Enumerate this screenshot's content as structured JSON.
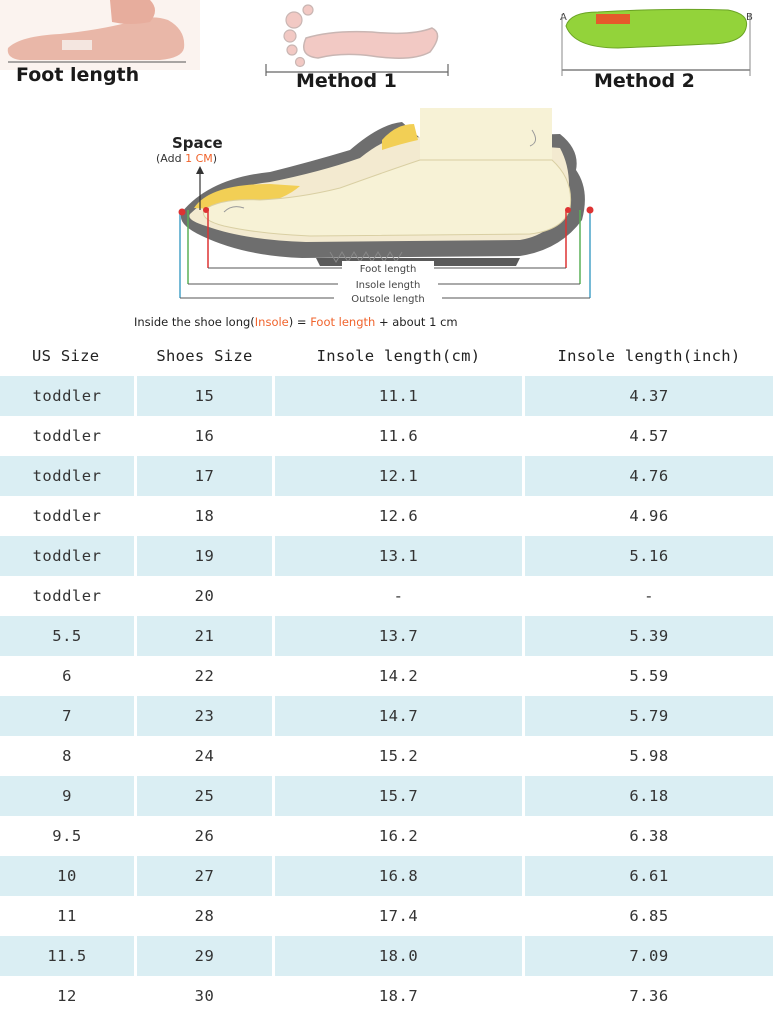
{
  "methods": {
    "foot_length_label": "Foot length",
    "method1_label": "Method 1",
    "method2_label": "Method 2",
    "insole_end_a": "A",
    "insole_end_b": "B"
  },
  "diagram": {
    "space_label": "Space",
    "add_prefix": "(Add ",
    "add_value": "1 CM",
    "add_suffix": ")",
    "foot_length": "Foot length",
    "insole_length": "Insole length",
    "outsole_length": "Outsole length",
    "caption_part1": "Inside the shoe long(",
    "caption_insole": "Insole",
    "caption_part2": ") = ",
    "caption_foot": "Foot length",
    "caption_part3": " + about 1 cm",
    "accent_color": "#f0642d"
  },
  "table": {
    "headers": [
      "US Size",
      "Shoes Size",
      "Insole length(cm)",
      "Insole length(inch)"
    ],
    "shade_color": "#daeef3",
    "rows": [
      [
        "toddler",
        "15",
        "11.1",
        "4.37"
      ],
      [
        "toddler",
        "16",
        "11.6",
        "4.57"
      ],
      [
        "toddler",
        "17",
        "12.1",
        "4.76"
      ],
      [
        "toddler",
        "18",
        "12.6",
        "4.96"
      ],
      [
        "toddler",
        "19",
        "13.1",
        "5.16"
      ],
      [
        "toddler",
        "20",
        "-",
        "-"
      ],
      [
        "5.5",
        "21",
        "13.7",
        "5.39"
      ],
      [
        "6",
        "22",
        "14.2",
        "5.59"
      ],
      [
        "7",
        "23",
        "14.7",
        "5.79"
      ],
      [
        "8",
        "24",
        "15.2",
        "5.98"
      ],
      [
        "9",
        "25",
        "15.7",
        "6.18"
      ],
      [
        "9.5",
        "26",
        "16.2",
        "6.38"
      ],
      [
        "10",
        "27",
        "16.8",
        "6.61"
      ],
      [
        "11",
        "28",
        "17.4",
        "6.85"
      ],
      [
        "11.5",
        "29",
        "18.0",
        "7.09"
      ],
      [
        "12",
        "30",
        "18.7",
        "7.36"
      ]
    ]
  }
}
